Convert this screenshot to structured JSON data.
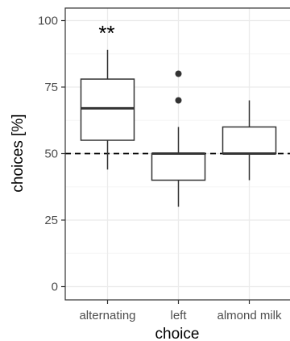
{
  "chart_data": {
    "type": "box",
    "xlabel": "choice",
    "ylabel": "choices [%]",
    "ylim": [
      0,
      100
    ],
    "yticks": [
      0,
      25,
      50,
      75,
      100
    ],
    "grid": true,
    "reference_line": {
      "y": 50,
      "style": "dashed"
    },
    "categories": [
      "alternating",
      "left",
      "almond milk"
    ],
    "boxes": [
      {
        "category": "alternating",
        "whisker_low": 44,
        "q1": 55,
        "median": 67,
        "q3": 78,
        "whisker_high": 89,
        "outliers": [],
        "annotation": "**"
      },
      {
        "category": "left",
        "whisker_low": 30,
        "q1": 40,
        "median": 50,
        "q3": 50,
        "whisker_high": 60,
        "outliers": [
          70,
          80
        ],
        "annotation": ""
      },
      {
        "category": "almond milk",
        "whisker_low": 40,
        "q1": 50,
        "median": 50,
        "q3": 60,
        "whisker_high": 70,
        "outliers": [],
        "annotation": ""
      }
    ]
  },
  "colors": {
    "panel_border": "#333333",
    "grid_major": "#ebebeb",
    "grid_minor": "#f5f5f5",
    "box_line": "#333333",
    "outlier": "#333333",
    "reference_line": "#000000"
  }
}
